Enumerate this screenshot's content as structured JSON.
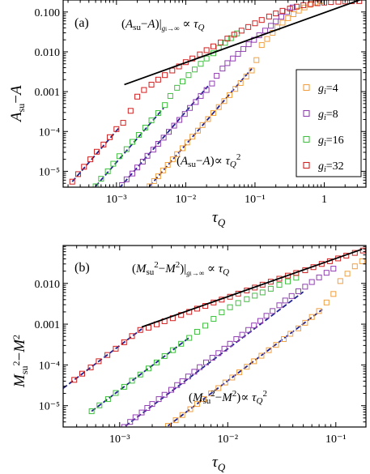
{
  "colors": {
    "g4": "#f0a040",
    "g8": "#9040b0",
    "g16": "#40c040",
    "g32": "#d02020",
    "theory": "#000000",
    "fit": "#202090"
  },
  "chart_data": [
    {
      "type": "scatter",
      "panel_label": "(a)",
      "xlabel": "τ_Q",
      "ylabel": "A_su − A",
      "xscale": "log",
      "yscale": "log",
      "xlim": [
        0.00017,
        4.0
      ],
      "ylim": [
        4e-06,
        0.2
      ],
      "x_ticks": [
        {
          "value": 0.001,
          "label": "10⁻³"
        },
        {
          "value": 0.01,
          "label": "10⁻²"
        },
        {
          "value": 0.1,
          "label": "10⁻¹"
        },
        {
          "value": 1,
          "label": "1"
        }
      ],
      "y_ticks": [
        {
          "value": 1e-05,
          "label": "10⁻⁵"
        },
        {
          "value": 0.0001,
          "label": "10⁻⁴"
        },
        {
          "value": 0.001,
          "label": "0.001"
        },
        {
          "value": 0.01,
          "label": "0.010"
        },
        {
          "value": 0.1,
          "label": "0.100"
        }
      ],
      "annotations": [
        {
          "text": "(A_su−A)|_{g_i→∞} ∝ τ_Q",
          "position": "top"
        },
        {
          "text": "(A_su−A) ∝ τ_Q²",
          "position": "bottom"
        }
      ],
      "legend": {
        "position": "right",
        "entries": [
          {
            "label": "g_i=4",
            "key": "g4"
          },
          {
            "label": "g_i=8",
            "key": "g8"
          },
          {
            "label": "g_i=16",
            "key": "g16"
          },
          {
            "label": "g_i=32",
            "key": "g32"
          }
        ]
      },
      "series": [
        {
          "key": "g4",
          "x": [
            0.003,
            0.0035,
            0.004,
            0.0047,
            0.0055,
            0.0065,
            0.0075,
            0.009,
            0.0105,
            0.0125,
            0.015,
            0.0175,
            0.021,
            0.025,
            0.03,
            0.036,
            0.043,
            0.052,
            0.062,
            0.075,
            0.09,
            0.105,
            0.125,
            0.15,
            0.18,
            0.21,
            0.25,
            0.3,
            0.36,
            0.43,
            0.52,
            0.62,
            0.75,
            0.9
          ],
          "y": [
            4.2e-06,
            5.7e-06,
            7.5e-06,
            1.05e-05,
            1.45e-05,
            2e-05,
            2.7e-05,
            3.8e-05,
            5.3e-05,
            7.4e-05,
            0.000105,
            0.000145,
            0.000205,
            0.00029,
            0.00041,
            0.00058,
            0.00082,
            0.00117,
            0.00165,
            0.0024,
            0.0034,
            0.0062,
            0.0148,
            0.021,
            0.03,
            0.041,
            0.054,
            0.07,
            0.088,
            0.108,
            0.13,
            0.152,
            0.172,
            0.19
          ]
        },
        {
          "key": "g8",
          "x": [
            0.0012,
            0.0014,
            0.0017,
            0.002,
            0.0024,
            0.0028,
            0.0034,
            0.004,
            0.0048,
            0.0057,
            0.0068,
            0.0081,
            0.0097,
            0.0115,
            0.014,
            0.0165,
            0.02,
            0.024,
            0.028,
            0.034,
            0.04,
            0.048,
            0.057,
            0.068,
            0.081,
            0.097,
            0.115,
            0.14,
            0.17,
            0.2,
            0.24,
            0.29,
            0.35
          ],
          "y": [
            4.5e-06,
            6.3e-06,
            8.8e-06,
            1.25e-05,
            1.75e-05,
            2.45e-05,
            3.5e-05,
            4.9e-05,
            7e-05,
            9.8e-05,
            0.00014,
            0.000195,
            0.000275,
            0.00039,
            0.00055,
            0.00078,
            0.0011,
            0.0016,
            0.0025,
            0.0038,
            0.0052,
            0.0068,
            0.0089,
            0.0118,
            0.0155,
            0.02,
            0.026,
            0.034,
            0.045,
            0.058,
            0.076,
            0.1,
            0.13
          ]
        },
        {
          "key": "g16",
          "x": [
            0.0005,
            0.0006,
            0.00075,
            0.0009,
            0.0011,
            0.0014,
            0.0017,
            0.0021,
            0.0026,
            0.0032,
            0.004,
            0.005,
            0.006,
            0.0075,
            0.009,
            0.011,
            0.0135,
            0.0165,
            0.02,
            0.025,
            0.03,
            0.037,
            0.045,
            0.055
          ],
          "y": [
            4.2e-06,
            6.5e-06,
            1e-05,
            1.55e-05,
            2.4e-05,
            3.6e-05,
            5.5e-05,
            8.2e-05,
            0.000125,
            0.00019,
            0.00029,
            0.00046,
            0.00078,
            0.00125,
            0.0018,
            0.0026,
            0.0036,
            0.005,
            0.0068,
            0.0092,
            0.0125,
            0.0168,
            0.022,
            0.029
          ]
        },
        {
          "key": "g32",
          "x": [
            0.00023,
            0.00028,
            0.00034,
            0.00042,
            0.00052,
            0.00065,
            0.0008,
            0.001,
            0.00125,
            0.0016,
            0.002,
            0.0025,
            0.0032,
            0.004,
            0.005,
            0.0064,
            0.008,
            0.01,
            0.0125,
            0.016,
            0.02,
            0.025,
            0.032,
            0.04,
            0.05,
            0.064,
            0.08,
            0.1,
            0.125,
            0.16,
            0.2,
            0.25,
            0.32,
            0.4,
            0.5,
            0.64,
            0.8,
            1.0,
            1.25,
            1.6,
            2.0,
            2.5,
            3.2
          ],
          "y": [
            5.5e-06,
            8.5e-06,
            1.3e-05,
            2e-05,
            3.1e-05,
            4.7e-05,
            7.2e-05,
            0.000115,
            0.000165,
            0.00033,
            0.00075,
            0.0011,
            0.0015,
            0.002,
            0.0026,
            0.0034,
            0.0043,
            0.0055,
            0.0068,
            0.0086,
            0.011,
            0.0137,
            0.0172,
            0.0215,
            0.027,
            0.034,
            0.042,
            0.052,
            0.063,
            0.077,
            0.092,
            0.107,
            0.122,
            0.136,
            0.148,
            0.158,
            0.166,
            0.172,
            0.177,
            0.181,
            0.184,
            0.186,
            0.188
          ]
        }
      ],
      "theory_line": {
        "x": [
          0.0013,
          3.5
        ],
        "y": [
          0.0015,
          0.21
        ]
      },
      "fit_lines": [
        {
          "key": "g32",
          "x": [
            0.00023,
            0.0011
          ]
        },
        {
          "key": "g16",
          "x": [
            0.0005,
            0.0048
          ]
        },
        {
          "key": "g8",
          "x": [
            0.0011,
            0.021
          ]
        },
        {
          "key": "g4",
          "x": [
            0.003,
            0.09
          ]
        }
      ]
    },
    {
      "type": "scatter",
      "panel_label": "(b)",
      "xlabel": "τ_Q",
      "ylabel": "M_su² − M²",
      "xscale": "log",
      "yscale": "log",
      "xlim": [
        0.0003,
        0.19
      ],
      "ylim": [
        3e-06,
        0.085
      ],
      "x_ticks": [
        {
          "value": 0.001,
          "label": "10⁻³"
        },
        {
          "value": 0.01,
          "label": "10⁻²"
        },
        {
          "value": 0.1,
          "label": "10⁻¹"
        }
      ],
      "y_ticks": [
        {
          "value": 1e-05,
          "label": "10⁻⁵"
        },
        {
          "value": 0.0001,
          "label": "10⁻⁴"
        },
        {
          "value": 0.001,
          "label": "0.001"
        },
        {
          "value": 0.01,
          "label": "0.010"
        }
      ],
      "annotations": [
        {
          "text": "(M_su²−M²)|_{g_i→∞} ∝ τ_Q",
          "position": "top"
        },
        {
          "text": "(M_su²−M²) ∝ τ_Q²",
          "position": "bottom"
        }
      ],
      "series": [
        {
          "key": "g4",
          "x": [
            0.0028,
            0.0033,
            0.0038,
            0.0045,
            0.0052,
            0.006,
            0.007,
            0.0082,
            0.0095,
            0.011,
            0.0128,
            0.015,
            0.0175,
            0.0205,
            0.024,
            0.028,
            0.033,
            0.038,
            0.045,
            0.052,
            0.06,
            0.07,
            0.082,
            0.095,
            0.11,
            0.128,
            0.15,
            0.175
          ],
          "y": [
            3.2e-06,
            4.4e-06,
            5.9e-06,
            8.2e-06,
            1.1e-05,
            1.45e-05,
            2e-05,
            2.7e-05,
            3.7e-05,
            4.9e-05,
            6.6e-05,
            9e-05,
            0.000123,
            0.000168,
            0.00023,
            0.00031,
            0.00043,
            0.00058,
            0.00079,
            0.00108,
            0.0015,
            0.0021,
            0.0034,
            0.0055,
            0.0114,
            0.0173,
            0.0262,
            0.035
          ]
        },
        {
          "key": "g8",
          "x": [
            0.0011,
            0.00125,
            0.0014,
            0.0016,
            0.0018,
            0.002,
            0.0023,
            0.0026,
            0.003,
            0.0034,
            0.0038,
            0.0043,
            0.0049,
            0.0055,
            0.0063,
            0.0072,
            0.0082,
            0.0093,
            0.0105,
            0.012,
            0.0136,
            0.0155,
            0.0175,
            0.02,
            0.0228,
            0.026,
            0.03,
            0.034,
            0.039,
            0.045,
            0.052,
            0.06,
            0.07,
            0.082,
            0.095
          ],
          "y": [
            3e-06,
            4e-06,
            5.2e-06,
            6.8e-06,
            8.8e-06,
            1.1e-05,
            1.45e-05,
            1.85e-05,
            2.45e-05,
            3.2e-05,
            4e-05,
            5.2e-05,
            6.8e-05,
            8.8e-05,
            0.000115,
            0.00015,
            0.000195,
            0.00025,
            0.00033,
            0.00043,
            0.00055,
            0.00072,
            0.00093,
            0.0012,
            0.0016,
            0.0021,
            0.0029,
            0.0038,
            0.0049,
            0.0064,
            0.0083,
            0.0108,
            0.014,
            0.0182,
            0.023
          ]
        },
        {
          "key": "g16",
          "x": [
            0.00055,
            0.00065,
            0.00078,
            0.00092,
            0.0011,
            0.0013,
            0.00155,
            0.00185,
            0.0022,
            0.0026,
            0.0031,
            0.0037,
            0.0044,
            0.0052,
            0.0062,
            0.0074,
            0.0088,
            0.0105,
            0.0125,
            0.015,
            0.0178,
            0.021,
            0.025,
            0.03,
            0.036,
            0.043
          ],
          "y": [
            7.3e-06,
            1.02e-05,
            1.45e-05,
            2.05e-05,
            2.9e-05,
            4.1e-05,
            5.8e-05,
            8.2e-05,
            0.000115,
            0.000165,
            0.00023,
            0.00033,
            0.00046,
            0.00065,
            0.00092,
            0.00135,
            0.00195,
            0.0026,
            0.0033,
            0.0041,
            0.005,
            0.006,
            0.0074,
            0.0092,
            0.0112,
            0.0138
          ]
        },
        {
          "key": "g32",
          "x": [
            0.00038,
            0.00045,
            0.00054,
            0.00064,
            0.00077,
            0.00092,
            0.0011,
            0.0013,
            0.00155,
            0.00185,
            0.0022,
            0.0026,
            0.0031,
            0.0037,
            0.0044,
            0.0052,
            0.0062,
            0.0074,
            0.0088,
            0.0105,
            0.0125,
            0.015,
            0.0178,
            0.021,
            0.025,
            0.03,
            0.036,
            0.043,
            0.052,
            0.062,
            0.074,
            0.088,
            0.105,
            0.125,
            0.15,
            0.178
          ],
          "y": [
            4.3e-05,
            6.1e-05,
            8.7e-05,
            0.000123,
            0.000175,
            0.00025,
            0.00036,
            0.00051,
            0.00072,
            0.00082,
            0.00099,
            0.00118,
            0.0014,
            0.00168,
            0.002,
            0.0024,
            0.0028,
            0.0034,
            0.004,
            0.0047,
            0.0056,
            0.0067,
            0.0079,
            0.0093,
            0.011,
            0.013,
            0.0155,
            0.018,
            0.021,
            0.025,
            0.03,
            0.035,
            0.041,
            0.048,
            0.056,
            0.064
          ]
        }
      ],
      "theory_line": {
        "x": [
          0.0016,
          0.175
        ],
        "y": [
          0.00085,
          0.069
        ]
      },
      "fit_lines": [
        {
          "key": "g32",
          "x": [
            0.0003,
            0.0016
          ]
        },
        {
          "key": "g16",
          "x": [
            0.00055,
            0.0045
          ]
        },
        {
          "key": "g8",
          "x": [
            0.001,
            0.05
          ]
        },
        {
          "key": "g4",
          "x": [
            0.0028,
            0.075
          ]
        }
      ]
    }
  ]
}
